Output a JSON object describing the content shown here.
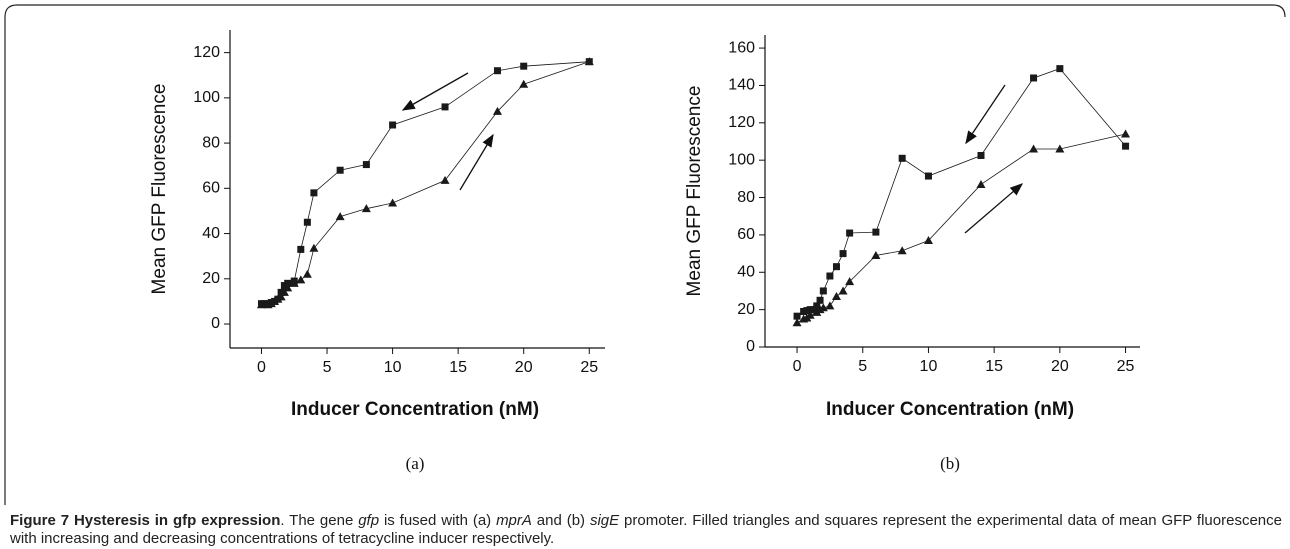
{
  "chart_data": [
    {
      "type": "line",
      "panel_label": "(a)",
      "xlabel": "Inducer Concentration (nM)",
      "ylabel": "Mean GFP Fluorescence",
      "xlim": [
        -2.4,
        26.2
      ],
      "ylim": [
        -10.6,
        130
      ],
      "xticks": [
        0,
        5,
        10,
        15,
        20,
        25
      ],
      "yticks": [
        0,
        20,
        40,
        60,
        80,
        100,
        120
      ],
      "series": [
        {
          "marker": "square",
          "color": "#1a1a1a",
          "x": [
            0,
            0.25,
            0.5,
            0.75,
            1,
            1.25,
            1.5,
            1.75,
            2,
            2.5,
            3,
            3.5,
            4,
            6,
            8,
            10,
            14,
            18,
            20,
            25
          ],
          "values": [
            9,
            9,
            9,
            9.5,
            10,
            11,
            14,
            17,
            18,
            19,
            33,
            45,
            58,
            68,
            70.5,
            88,
            96,
            112,
            114,
            116
          ]
        },
        {
          "marker": "triangle",
          "color": "#1a1a1a",
          "x": [
            0,
            0.5,
            0.75,
            1,
            1.25,
            1.5,
            1.75,
            2,
            2.5,
            3,
            3.5,
            4,
            6,
            8,
            10,
            14,
            18,
            20,
            25
          ],
          "values": [
            8.5,
            8.5,
            9,
            10,
            11,
            12,
            14,
            16,
            18,
            19.5,
            22,
            33.5,
            47.5,
            51,
            53.5,
            63.5,
            94,
            106,
            116
          ]
        }
      ]
    },
    {
      "type": "line",
      "panel_label": "(b)",
      "xlabel": "Inducer Concentration (nM)",
      "ylabel": "Mean GFP Fluorescence",
      "xlim": [
        -2.44,
        26.1
      ],
      "ylim": [
        0,
        167
      ],
      "xticks": [
        0,
        5,
        10,
        15,
        20,
        25
      ],
      "yticks": [
        0,
        20,
        40,
        60,
        80,
        100,
        120,
        140,
        160
      ],
      "series": [
        {
          "marker": "square",
          "color": "#1a1a1a",
          "x": [
            0,
            0.5,
            0.75,
            1,
            1.25,
            1.5,
            1.75,
            2,
            2.5,
            3,
            3.5,
            4,
            6,
            8,
            10,
            14,
            18,
            20,
            25
          ],
          "values": [
            16.5,
            19,
            19.5,
            20,
            20,
            22,
            25,
            30,
            38,
            43,
            50,
            61,
            61.5,
            101,
            91.5,
            102.5,
            144,
            149,
            107.5
          ]
        },
        {
          "marker": "triangle",
          "color": "#1a1a1a",
          "x": [
            0,
            0.5,
            0.75,
            1,
            1.5,
            1.75,
            2,
            2.5,
            3,
            3.5,
            4,
            6,
            8,
            10,
            14,
            18,
            20,
            25
          ],
          "values": [
            13,
            15,
            15.5,
            17,
            18.5,
            20,
            21,
            22,
            27,
            30,
            35,
            49,
            51.5,
            57,
            87,
            106,
            106,
            114
          ]
        }
      ]
    }
  ],
  "caption": {
    "parts": [
      "Figure 7 Hysteresis in gfp expression",
      ". The gene ",
      "gfp",
      " is fused with (a) ",
      "mprA",
      " and (b) ",
      "sigE",
      " promoter. Filled triangles and squares represent the experimental data of mean GFP fluorescence with increasing and decreasing concentrations of tetracycline inducer respectively."
    ]
  }
}
